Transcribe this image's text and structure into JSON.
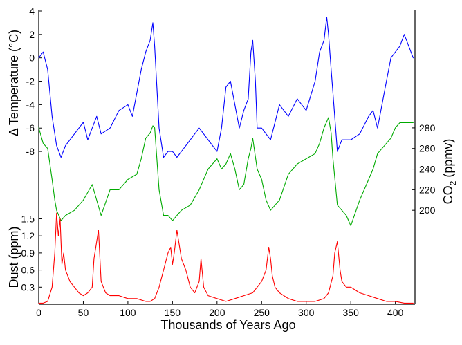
{
  "chart_data": {
    "type": "line",
    "xlabel": "Thousands of Years Ago",
    "x_ticks": [
      0,
      50,
      100,
      150,
      200,
      250,
      300,
      350,
      400
    ],
    "xlim": [
      0,
      422
    ],
    "axes": {
      "temperature": {
        "label": "Δ Temperature (°C)",
        "ticks": [
          4,
          2,
          0,
          -2,
          -4,
          -6,
          -8
        ],
        "tick_labels": [
          "4",
          "2",
          "0",
          "-2",
          "-4",
          "-6",
          "-8"
        ],
        "ylim": [
          -9,
          4
        ],
        "side": "left"
      },
      "co2": {
        "label_main": "CO",
        "label_sub": "2",
        "label_unit": " (ppmv)",
        "ticks": [
          200,
          220,
          240,
          260,
          280
        ],
        "tick_labels": [
          "200",
          "220",
          "240",
          "260",
          "280"
        ],
        "ylim": [
          180,
          290
        ],
        "side": "right"
      },
      "dust": {
        "label": "Dust (ppm)",
        "ticks": [
          0.3,
          0.6,
          0.9,
          1.2,
          1.5
        ],
        "tick_labels": [
          "0.3",
          "0.6",
          "0.9",
          "1.2",
          "1.5"
        ],
        "ylim": [
          0,
          1.7
        ],
        "side": "left"
      }
    },
    "series": [
      {
        "axis": "temperature",
        "color": "#0000ff",
        "x": [
          0,
          5,
          10,
          15,
          20,
          25,
          30,
          40,
          50,
          55,
          60,
          65,
          70,
          80,
          90,
          100,
          105,
          110,
          115,
          120,
          125,
          128,
          130,
          135,
          140,
          145,
          150,
          155,
          160,
          170,
          180,
          190,
          200,
          205,
          210,
          215,
          220,
          225,
          230,
          235,
          238,
          240,
          243,
          245,
          250,
          255,
          260,
          270,
          280,
          290,
          300,
          310,
          315,
          320,
          323,
          325,
          328,
          330,
          335,
          340,
          350,
          360,
          370,
          375,
          380,
          385,
          390,
          395,
          400,
          405,
          410,
          415,
          420
        ],
        "y": [
          0,
          0.5,
          -1,
          -5,
          -7.5,
          -8.5,
          -7.5,
          -6.5,
          -5.5,
          -7,
          -6,
          -5,
          -6.5,
          -6,
          -4.5,
          -4,
          -5,
          -3,
          -1,
          0.5,
          1.5,
          3,
          1,
          -6,
          -8.5,
          -8,
          -8,
          -8.5,
          -8,
          -7,
          -6,
          -7,
          -8,
          -6,
          -2.5,
          -2,
          -4,
          -6,
          -4.5,
          -3.5,
          0.5,
          1.5,
          -2,
          -6,
          -6,
          -6.5,
          -7,
          -4,
          -5,
          -3.5,
          -4.5,
          -2,
          0.5,
          1.5,
          3.5,
          2,
          -1,
          -3,
          -8,
          -7,
          -7,
          -6.5,
          -5,
          -4.5,
          -6,
          -4,
          -2,
          0,
          0.5,
          1,
          2,
          1,
          0
        ]
      },
      {
        "axis": "co2",
        "color": "#00aa00",
        "x": [
          0,
          5,
          8,
          10,
          15,
          18,
          20,
          25,
          30,
          40,
          50,
          60,
          70,
          80,
          90,
          100,
          110,
          115,
          120,
          125,
          128,
          130,
          135,
          140,
          145,
          150,
          155,
          160,
          170,
          180,
          190,
          200,
          205,
          210,
          215,
          220,
          225,
          230,
          235,
          238,
          240,
          245,
          250,
          255,
          260,
          270,
          280,
          290,
          300,
          310,
          315,
          320,
          325,
          328,
          330,
          335,
          340,
          345,
          350,
          360,
          370,
          375,
          380,
          385,
          390,
          395,
          400,
          405,
          410,
          415,
          420
        ],
        "y": [
          280,
          265,
          262,
          260,
          230,
          210,
          200,
          190,
          195,
          200,
          210,
          225,
          195,
          220,
          220,
          230,
          235,
          250,
          270,
          275,
          282,
          280,
          220,
          195,
          195,
          190,
          195,
          200,
          205,
          220,
          240,
          250,
          240,
          245,
          255,
          240,
          220,
          225,
          250,
          260,
          270,
          240,
          230,
          210,
          200,
          210,
          235,
          245,
          250,
          255,
          265,
          280,
          290,
          275,
          250,
          205,
          200,
          195,
          185,
          210,
          230,
          240,
          255,
          260,
          265,
          270,
          280,
          285,
          285,
          285,
          285
        ]
      },
      {
        "axis": "dust",
        "color": "#ff0000",
        "x": [
          0,
          5,
          10,
          15,
          18,
          20,
          22,
          24,
          26,
          28,
          30,
          35,
          40,
          45,
          50,
          55,
          60,
          62,
          65,
          67,
          70,
          75,
          80,
          90,
          100,
          110,
          120,
          125,
          130,
          135,
          140,
          145,
          148,
          150,
          152,
          155,
          158,
          160,
          165,
          170,
          175,
          180,
          182,
          185,
          190,
          200,
          210,
          220,
          230,
          240,
          245,
          250,
          255,
          258,
          260,
          262,
          265,
          270,
          280,
          290,
          300,
          310,
          320,
          325,
          330,
          332,
          335,
          338,
          340,
          345,
          350,
          360,
          370,
          380,
          390,
          400,
          410,
          420
        ],
        "y": [
          0.02,
          0.02,
          0.05,
          0.3,
          0.9,
          1.6,
          1.2,
          1.5,
          0.7,
          0.9,
          0.6,
          0.4,
          0.3,
          0.2,
          0.15,
          0.2,
          0.3,
          0.8,
          1.1,
          1.3,
          0.4,
          0.2,
          0.15,
          0.15,
          0.1,
          0.1,
          0.05,
          0.05,
          0.1,
          0.3,
          0.6,
          0.9,
          1.0,
          0.7,
          0.9,
          1.3,
          1.0,
          0.8,
          0.6,
          0.3,
          0.2,
          0.4,
          0.8,
          0.3,
          0.15,
          0.1,
          0.05,
          0.1,
          0.15,
          0.2,
          0.3,
          0.4,
          0.6,
          1.0,
          0.8,
          0.5,
          0.3,
          0.2,
          0.1,
          0.05,
          0.05,
          0.05,
          0.1,
          0.2,
          0.5,
          0.9,
          1.1,
          0.6,
          0.4,
          0.3,
          0.3,
          0.2,
          0.15,
          0.1,
          0.05,
          0.05,
          0.02,
          0.02
        ]
      }
    ]
  }
}
